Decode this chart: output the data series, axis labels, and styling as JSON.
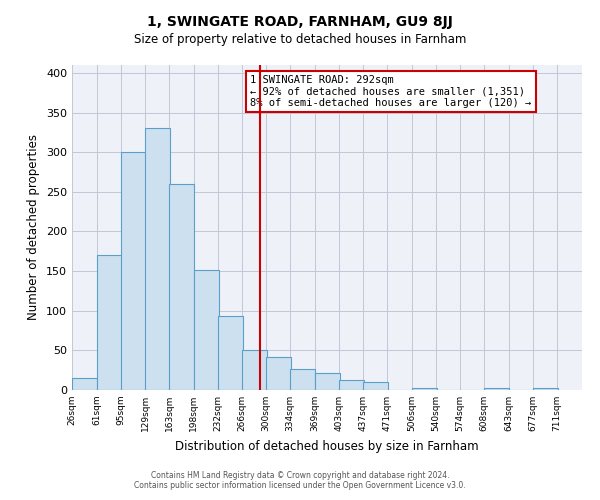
{
  "title1": "1, SWINGATE ROAD, FARNHAM, GU9 8JJ",
  "title2": "Size of property relative to detached houses in Farnham",
  "xlabel": "Distribution of detached houses by size in Farnham",
  "ylabel": "Number of detached properties",
  "bin_labels": [
    "26sqm",
    "61sqm",
    "95sqm",
    "129sqm",
    "163sqm",
    "198sqm",
    "232sqm",
    "266sqm",
    "300sqm",
    "334sqm",
    "369sqm",
    "403sqm",
    "437sqm",
    "471sqm",
    "506sqm",
    "540sqm",
    "574sqm",
    "608sqm",
    "643sqm",
    "677sqm",
    "711sqm"
  ],
  "bin_edges": [
    26,
    61,
    95,
    129,
    163,
    198,
    232,
    266,
    300,
    334,
    369,
    403,
    437,
    471,
    506,
    540,
    574,
    608,
    643,
    677,
    711
  ],
  "bar_heights": [
    15,
    170,
    300,
    330,
    260,
    152,
    93,
    50,
    42,
    27,
    22,
    12,
    10,
    0,
    2,
    0,
    0,
    2,
    0,
    2
  ],
  "bar_fill": "#cce0f0",
  "bar_edge": "#5b9ec9",
  "vline_x": 292,
  "vline_color": "#cc0000",
  "annotation_title": "1 SWINGATE ROAD: 292sqm",
  "annotation_line1": "← 92% of detached houses are smaller (1,351)",
  "annotation_line2": "8% of semi-detached houses are larger (120) →",
  "annotation_box_color": "#ffffff",
  "annotation_box_edge": "#cc0000",
  "ylim": [
    0,
    410
  ],
  "yticks": [
    0,
    50,
    100,
    150,
    200,
    250,
    300,
    350,
    400
  ],
  "bg_color": "#eef2f8",
  "footer1": "Contains HM Land Registry data © Crown copyright and database right 2024.",
  "footer2": "Contains public sector information licensed under the Open Government Licence v3.0."
}
